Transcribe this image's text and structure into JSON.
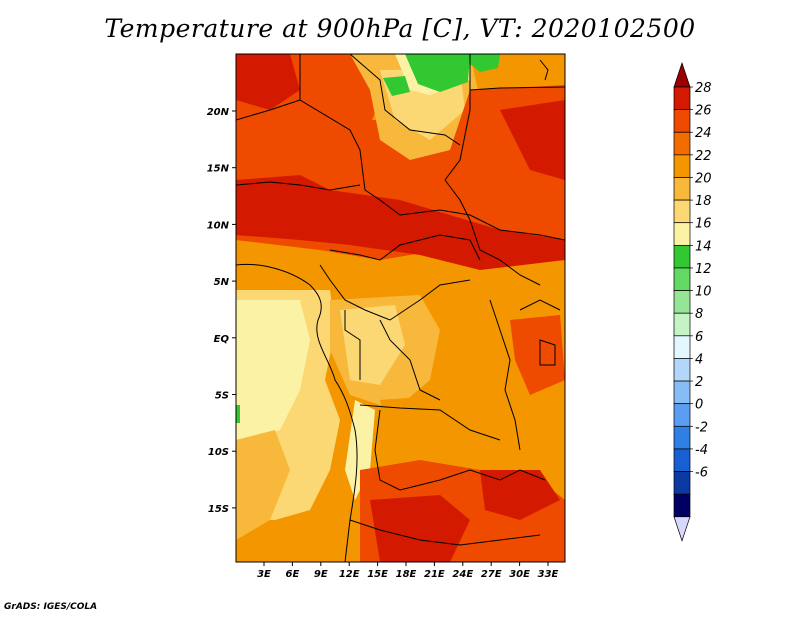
{
  "title": "Temperature at 900hPa [C], VT: 2020102500",
  "footer": "GrADS: IGES/COLA",
  "lat_labels": [
    "20N",
    "15N",
    "10N",
    "5N",
    "EQ",
    "5S",
    "10S",
    "15S"
  ],
  "lon_labels": [
    "3E",
    "6E",
    "9E",
    "12E",
    "15E",
    "18E",
    "21E",
    "24E",
    "27E",
    "30E",
    "33E"
  ],
  "colorbar": {
    "ticks": [
      "28",
      "26",
      "24",
      "22",
      "20",
      "18",
      "16",
      "14",
      "12",
      "10",
      "8",
      "6",
      "4",
      "2",
      "0",
      "-2",
      "-4",
      "-6"
    ],
    "colors": [
      "#9a0000",
      "#d31a00",
      "#ee4a00",
      "#f26c00",
      "#f39600",
      "#f8b83c",
      "#fbd873",
      "#fcf2a6",
      "#31c831",
      "#62d962",
      "#96e596",
      "#c6f3c6",
      "#e3f7ff",
      "#b4d6fa",
      "#87bcf4",
      "#5b9ef1",
      "#2f7fe5",
      "#185fd3",
      "#0b3aa2",
      "#000064",
      "#d8d8ff"
    ]
  },
  "map_palette": {
    "ocean_cool": "#fcf2a6",
    "warm_light": "#f8b83c",
    "warm": "#f39600",
    "hot": "#ee4a00",
    "hotter": "#d31a00",
    "green": "#31c831"
  }
}
